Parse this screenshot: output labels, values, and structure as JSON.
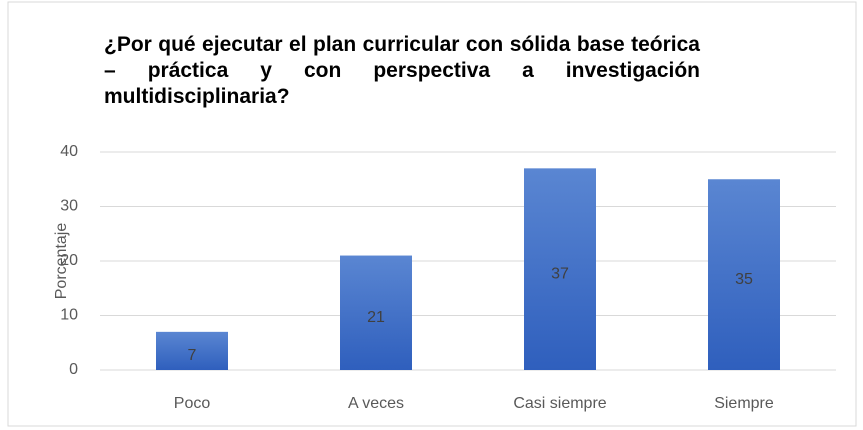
{
  "chart_data": {
    "type": "bar",
    "title": "¿Por qué ejecutar el plan curricular con sólida base teórica – práctica y con perspectiva a investigación multidisciplinaria?",
    "ylabel": "Porcentaje",
    "categories": [
      "Poco",
      "A veces",
      "Casi siempre",
      "Siempre"
    ],
    "values": [
      7,
      21,
      37,
      35
    ],
    "color": "#4472c4",
    "ylim": [
      0,
      40
    ],
    "yticks": [
      0,
      10,
      20,
      30,
      40
    ],
    "grid": true
  }
}
